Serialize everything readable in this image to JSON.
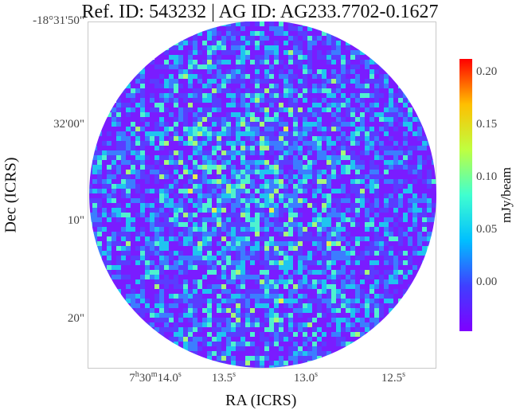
{
  "title": "Ref. ID: 543232 | AG ID: AG233.7702-0.1627",
  "x_axis_title": "RA (ICRS)",
  "y_axis_title": "Dec (ICRS)",
  "y_ticks": [
    "-18°31'50\"",
    "32'00\"",
    "10\"",
    "20\""
  ],
  "x_ticks": [
    {
      "h": "7",
      "hs": "h",
      "m": "30",
      "ms": "m",
      "s": "14.0",
      "ss": "s"
    },
    {
      "s": "13.5",
      "ss": "s"
    },
    {
      "s": "13.0",
      "ss": "s"
    },
    {
      "s": "12.5",
      "ss": "s"
    }
  ],
  "colorbar": {
    "label": "mJy/beam",
    "ticks": [
      "0.20",
      "0.15",
      "0.10",
      "0.05",
      "0.00"
    ],
    "tick_values": [
      0.2,
      0.15,
      0.1,
      0.05,
      0.0
    ],
    "range": [
      -0.045,
      0.215
    ],
    "colormap": "rainbow",
    "colors": [
      "#7f00ff",
      "#3f3fff",
      "#00bfff",
      "#40ffd0",
      "#bfff40",
      "#ffbf00",
      "#ff0000"
    ]
  }
}
